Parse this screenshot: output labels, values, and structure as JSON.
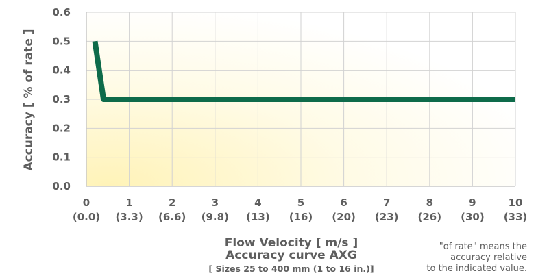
{
  "chart_data": {
    "type": "line",
    "ylabel": "Accuracy  [ % of rate ]",
    "xlabel": "Flow Velocity  [ m/s ]",
    "title": "Accuracy curve   AXG",
    "subtitle": "[ Sizes 25 to 400 mm (1 to 16 in.)]",
    "note": [
      "\"of rate\" means the",
      "accuracy relative",
      "to the indicated value."
    ],
    "xlim": [
      0,
      10
    ],
    "ylim": [
      0,
      0.6
    ],
    "x_ticks": [
      {
        "value": 0,
        "label": "0",
        "sublabel": "(0.0)"
      },
      {
        "value": 1,
        "label": "1",
        "sublabel": "(3.3)"
      },
      {
        "value": 2,
        "label": "2",
        "sublabel": "(6.6)"
      },
      {
        "value": 3,
        "label": "3",
        "sublabel": "(9.8)"
      },
      {
        "value": 4,
        "label": "4",
        "sublabel": "(13)"
      },
      {
        "value": 5,
        "label": "5",
        "sublabel": "(16)"
      },
      {
        "value": 6,
        "label": "6",
        "sublabel": "(20)"
      },
      {
        "value": 7,
        "label": "7",
        "sublabel": "(23)"
      },
      {
        "value": 8,
        "label": "8",
        "sublabel": "(26)"
      },
      {
        "value": 9,
        "label": "9",
        "sublabel": "(30)"
      },
      {
        "value": 10,
        "label": "10",
        "sublabel": "(33)"
      }
    ],
    "y_ticks": [
      {
        "value": 0,
        "label": "0.0"
      },
      {
        "value": 0.1,
        "label": "0.1"
      },
      {
        "value": 0.2,
        "label": "0.2"
      },
      {
        "value": 0.3,
        "label": "0.3"
      },
      {
        "value": 0.4,
        "label": "0.4"
      },
      {
        "value": 0.5,
        "label": "0.5"
      },
      {
        "value": 0.6,
        "label": "0.6"
      }
    ],
    "grid": true,
    "series": [
      {
        "color": "#0e6b4a",
        "points": [
          [
            0.2,
            0.5
          ],
          [
            0.4,
            0.3
          ],
          [
            10,
            0.3
          ]
        ]
      }
    ],
    "colors": {
      "line": "#0e6b4a",
      "grid": "#d2d2d2",
      "axis": "#c8c8c8",
      "bg_highlight": "#fff6c4"
    }
  }
}
